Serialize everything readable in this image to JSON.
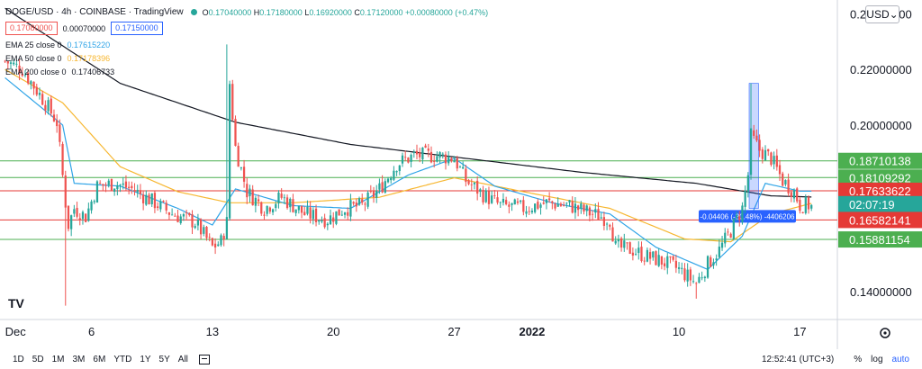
{
  "legend": {
    "symbol": "DOGE/USD · 4h · COINBASE · TradingView",
    "ohlc_prefix_o": "O",
    "o": "0.17040000",
    "ohlc_prefix_h": "H",
    "h": "0.17180000",
    "ohlc_prefix_l": "L",
    "l": "0.16920000",
    "ohlc_prefix_c": "C",
    "c": "0.17120000",
    "change": "+0.00080000 (+0.47%)",
    "sell": "0.17080000",
    "spread": "0.00070000",
    "buy": "0.17150000",
    "ema25_label": "EMA 25 close 0",
    "ema25_value": "0.17615220",
    "ema50_label": "EMA 50 close 0",
    "ema50_value": "0.17178396",
    "ema200_label": "EMA 200 close 0",
    "ema200_value": "0.17406733"
  },
  "currency": "USD",
  "bottom": {
    "ranges": [
      "1D",
      "5D",
      "1M",
      "3M",
      "6M",
      "YTD",
      "1Y",
      "5Y",
      "All"
    ],
    "time": "12:52:41 (UTC+3)",
    "percent": "%",
    "log": "log",
    "auto": "auto"
  },
  "colors": {
    "up": "#26a69a",
    "down": "#ef5350",
    "ema25": "#2fa4e7",
    "ema50": "#f7b731",
    "ema200": "#131722",
    "hline_green": "#4caf50",
    "hline_red": "#e53935",
    "measure": "#2962ff"
  },
  "chart_data": {
    "type": "candlestick",
    "symbol": "DOGE/USD",
    "interval": "4h",
    "ylim": [
      0.13,
      0.245
    ],
    "y_ticks": [
      0.14,
      0.16,
      0.18,
      0.2,
      0.22,
      0.24
    ],
    "y_tick_labels": [
      "0.14000000",
      "",
      "",
      "0.20000000",
      "0.22000000",
      "0.24000000"
    ],
    "x_ticks": [
      {
        "label": "Dec",
        "i": 0
      },
      {
        "label": "6",
        "i": 30
      },
      {
        "label": "13",
        "i": 72
      },
      {
        "label": "20",
        "i": 114
      },
      {
        "label": "27",
        "i": 156
      },
      {
        "label": "2022",
        "i": 183,
        "bold": true
      },
      {
        "label": "10",
        "i": 234
      },
      {
        "label": "17",
        "i": 276
      }
    ],
    "x_count": 282,
    "anchors": [
      [
        0,
        0.223
      ],
      [
        6,
        0.22
      ],
      [
        10,
        0.214
      ],
      [
        14,
        0.208
      ],
      [
        18,
        0.201
      ],
      [
        21,
        0.172
      ],
      [
        22,
        0.164
      ],
      [
        24,
        0.17
      ],
      [
        28,
        0.167
      ],
      [
        32,
        0.178
      ],
      [
        38,
        0.179
      ],
      [
        44,
        0.177
      ],
      [
        52,
        0.172
      ],
      [
        58,
        0.168
      ],
      [
        66,
        0.165
      ],
      [
        72,
        0.156
      ],
      [
        75,
        0.158
      ],
      [
        77,
        0.165
      ],
      [
        78,
        0.215
      ],
      [
        80,
        0.192
      ],
      [
        84,
        0.176
      ],
      [
        90,
        0.17
      ],
      [
        96,
        0.174
      ],
      [
        104,
        0.168
      ],
      [
        112,
        0.166
      ],
      [
        118,
        0.17
      ],
      [
        124,
        0.171
      ],
      [
        130,
        0.177
      ],
      [
        136,
        0.186
      ],
      [
        142,
        0.189
      ],
      [
        150,
        0.189
      ],
      [
        156,
        0.188
      ],
      [
        160,
        0.18
      ],
      [
        166,
        0.175
      ],
      [
        172,
        0.171
      ],
      [
        180,
        0.17
      ],
      [
        188,
        0.172
      ],
      [
        196,
        0.171
      ],
      [
        204,
        0.168
      ],
      [
        210,
        0.166
      ],
      [
        212,
        0.156
      ],
      [
        218,
        0.155
      ],
      [
        222,
        0.153
      ],
      [
        228,
        0.151
      ],
      [
        234,
        0.148
      ],
      [
        240,
        0.143
      ],
      [
        244,
        0.15
      ],
      [
        248,
        0.155
      ],
      [
        252,
        0.162
      ],
      [
        256,
        0.17
      ],
      [
        258,
        0.182
      ],
      [
        259,
        0.196
      ],
      [
        262,
        0.191
      ],
      [
        266,
        0.188
      ],
      [
        270,
        0.18
      ],
      [
        274,
        0.176
      ],
      [
        276,
        0.1712
      ],
      [
        280,
        0.1712
      ]
    ],
    "spikes": [
      {
        "i": 21,
        "low": 0.135
      },
      {
        "i": 77,
        "high": 0.229
      },
      {
        "i": 240,
        "low": 0.1375
      },
      {
        "i": 259,
        "high": 0.215
      }
    ],
    "ema25": [
      [
        0,
        0.217
      ],
      [
        20,
        0.2
      ],
      [
        24,
        0.179
      ],
      [
        40,
        0.178
      ],
      [
        60,
        0.17
      ],
      [
        72,
        0.164
      ],
      [
        80,
        0.177
      ],
      [
        100,
        0.171
      ],
      [
        120,
        0.17
      ],
      [
        140,
        0.182
      ],
      [
        156,
        0.188
      ],
      [
        170,
        0.178
      ],
      [
        190,
        0.172
      ],
      [
        210,
        0.168
      ],
      [
        226,
        0.156
      ],
      [
        244,
        0.148
      ],
      [
        256,
        0.16
      ],
      [
        264,
        0.179
      ],
      [
        276,
        0.1762
      ],
      [
        280,
        0.1762
      ]
    ],
    "ema50": [
      [
        0,
        0.22
      ],
      [
        20,
        0.208
      ],
      [
        40,
        0.185
      ],
      [
        60,
        0.176
      ],
      [
        78,
        0.172
      ],
      [
        100,
        0.172
      ],
      [
        130,
        0.174
      ],
      [
        156,
        0.181
      ],
      [
        180,
        0.176
      ],
      [
        210,
        0.17
      ],
      [
        236,
        0.159
      ],
      [
        252,
        0.158
      ],
      [
        266,
        0.168
      ],
      [
        280,
        0.1718
      ]
    ],
    "ema200": [
      [
        0,
        0.242
      ],
      [
        40,
        0.215
      ],
      [
        80,
        0.201
      ],
      [
        120,
        0.193
      ],
      [
        160,
        0.188
      ],
      [
        200,
        0.183
      ],
      [
        240,
        0.179
      ],
      [
        266,
        0.1745
      ],
      [
        280,
        0.1741
      ]
    ],
    "horizontal_lines": [
      {
        "price": 0.18710138,
        "label": "0.18710138",
        "color": "green"
      },
      {
        "price": 0.18109292,
        "label": "0.18109292",
        "color": "green"
      },
      {
        "price": 0.17633622,
        "label": "0.17633622",
        "color": "red"
      },
      {
        "price": 0.16582141,
        "label": "0.16582141",
        "color": "red"
      },
      {
        "price": 0.15881154,
        "label": "0.15881154",
        "color": "green"
      }
    ],
    "countdown": "02:07:19",
    "current_price": 0.1712,
    "measure": {
      "label": "-0.04406 (-20.48%) -4406206",
      "i_start": 259,
      "i_end": 261,
      "high": 0.215,
      "low": 0.17
    }
  }
}
